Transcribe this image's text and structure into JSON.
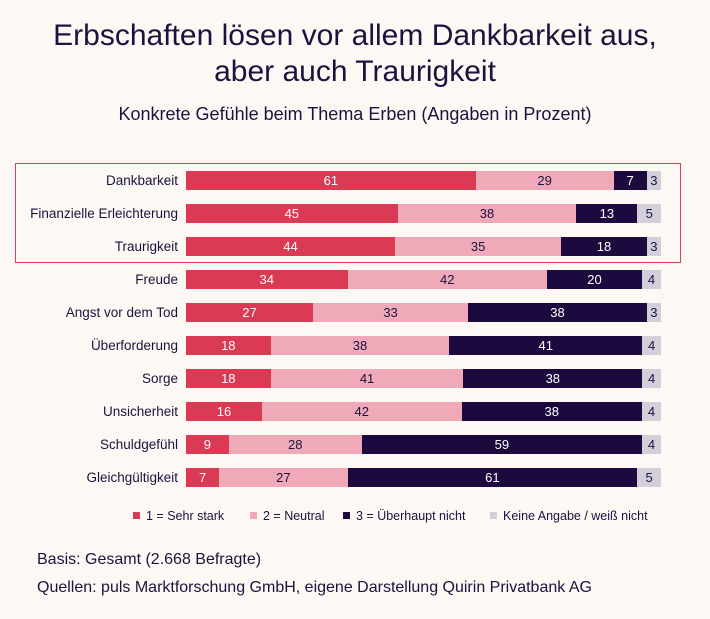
{
  "title_line1": "Erbschaften lösen vor allem Dankbarkeit aus,",
  "title_line2": "aber auch Traurigkeit",
  "subtitle": "Konkrete Gefühle beim Thema Erben (Angaben in Prozent)",
  "basis": "Basis: Gesamt (2.668 Befragte)",
  "source": "Quellen: puls Marktforschung GmbH, eigene Darstellung Quirin Privatbank AG",
  "colors": {
    "sehr_stark": "#db3a55",
    "neutral": "#f0a9b9",
    "ueberhaupt_nicht": "#1c0a3f",
    "keine_angabe": "#d2cfdb",
    "highlight": "#d6405e"
  },
  "chart_data": {
    "type": "bar",
    "orientation": "horizontal",
    "stacked": true,
    "title": "Erbschaften lösen vor allem Dankbarkeit aus, aber auch Traurigkeit",
    "subtitle": "Konkrete Gefühle beim Thema Erben (Angaben in Prozent)",
    "categories": [
      "Dankbarkeit",
      "Finanzielle Erleichterung",
      "Traurigkeit",
      "Freude",
      "Angst vor dem Tod",
      "Überforderung",
      "Sorge",
      "Unsicherheit",
      "Schuldgefühl",
      "Gleichgültigkeit"
    ],
    "highlighted_categories": [
      "Dankbarkeit",
      "Finanzielle Erleichterung",
      "Traurigkeit"
    ],
    "series": [
      {
        "name": "1 = Sehr stark",
        "values": [
          61,
          45,
          44,
          34,
          27,
          18,
          18,
          16,
          9,
          7
        ]
      },
      {
        "name": "2 = Neutral",
        "values": [
          29,
          38,
          35,
          42,
          33,
          38,
          41,
          42,
          28,
          27
        ]
      },
      {
        "name": "3 = Überhaupt nicht",
        "values": [
          7,
          13,
          18,
          20,
          38,
          41,
          38,
          38,
          59,
          61
        ]
      },
      {
        "name": "Keine Angabe / weiß nicht",
        "values": [
          3,
          5,
          3,
          4,
          3,
          4,
          4,
          4,
          4,
          5
        ]
      }
    ],
    "legend_position": "bottom",
    "grid": false
  }
}
